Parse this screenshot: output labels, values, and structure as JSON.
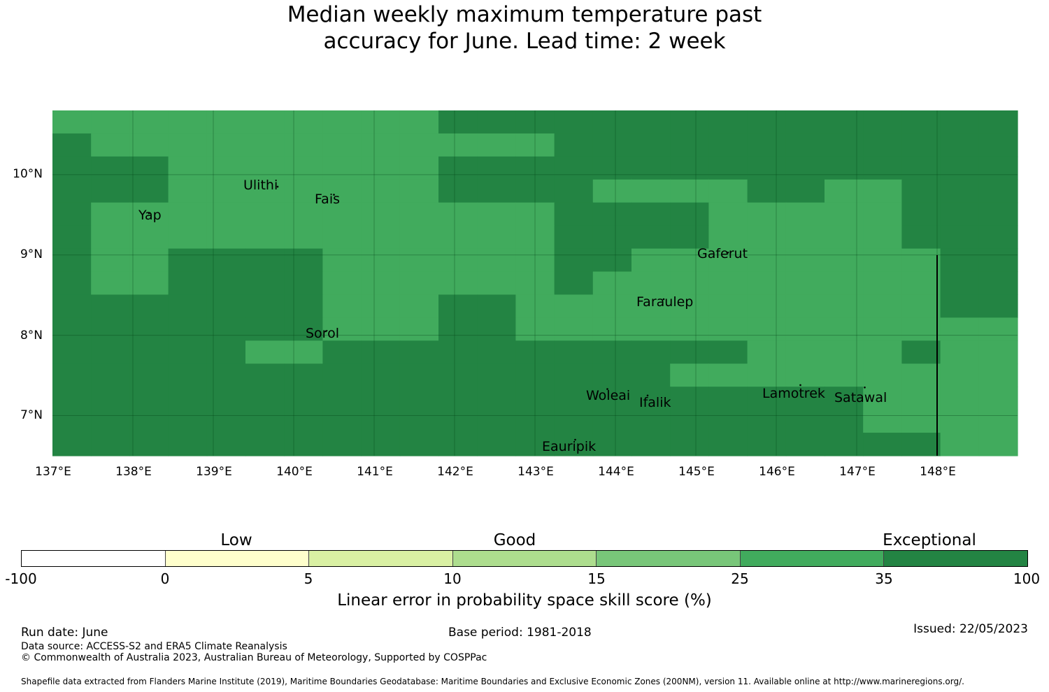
{
  "title": {
    "line1": "Median weekly maximum temperature past",
    "line2": "accuracy for June. Lead time: 2 week"
  },
  "map": {
    "lon_range": [
      137,
      149
    ],
    "lat_range": [
      6.5,
      10.8
    ],
    "lon_ticks": [
      "137°E",
      "138°E",
      "139°E",
      "140°E",
      "141°E",
      "142°E",
      "143°E",
      "144°E",
      "145°E",
      "146°E",
      "147°E",
      "148°E"
    ],
    "lat_ticks": [
      "10°N",
      "9°N",
      "8°N",
      "7°N"
    ],
    "colors": {
      "exceptional": "#238443",
      "good": "#41ab5d"
    },
    "grid_legend": "D = Exceptional (35 to 100), L = 25 to 35; columns from 137°E, rows from top",
    "grid": [
      "LLLLLLLLLLDDDDDDDDDDDDDDD",
      "DLLLLLLLLLLLLDDDDDDDDDDDD",
      "DDDLLLLLLLDDDDDDDDDDDDDDD",
      "DDDLLLLLLLDDDDLLLLDDLLDDD",
      "DLLLLLLLLLLLLDDDDLLLLLDDD",
      "DLLLLLLLLLLLLDDDDLLLLLDDD",
      "DLLDDDDLLLLLLDDLLLLLLLLDD",
      "DLLDDDDLLLLLLDLLLLLLLLLDD",
      "DDDDDDDLLLDDLLLLLLLLLLLDD",
      "DDDDDDDLLLDDLLLLLLLLLLLLL",
      "DDDDDLLDDDDDDDDDDDLLLLDLL",
      "DDDDDDDDDDDDDDDDLLLLLLLLL",
      "DDDDDDDDDDDDDDDDDDDDDLLLL",
      "DDDDDDDDDDDDDDDDDDDDDLLLL",
      "DDDDDDDDDDDDDDDDDDDDDDDLL"
    ],
    "places": [
      {
        "name": "Ulithi",
        "lon": 139.8,
        "lat": 9.85
      },
      {
        "name": "Fais",
        "lon": 140.5,
        "lat": 9.75
      },
      {
        "name": "Yap",
        "lon": 138.2,
        "lat": 9.52
      },
      {
        "name": "Gaferut",
        "lon": 145.4,
        "lat": 9.03
      },
      {
        "name": "Faraulep",
        "lon": 144.6,
        "lat": 8.45
      },
      {
        "name": "Sorol",
        "lon": 140.4,
        "lat": 8.05
      },
      {
        "name": "Woleai",
        "lon": 143.9,
        "lat": 7.33
      },
      {
        "name": "Ifalik",
        "lon": 144.4,
        "lat": 7.25
      },
      {
        "name": "Lamotrek",
        "lon": 146.3,
        "lat": 7.38
      },
      {
        "name": "Satawal",
        "lon": 147.1,
        "lat": 7.35
      },
      {
        "name": "Eauripik",
        "lon": 143.5,
        "lat": 6.7
      }
    ]
  },
  "colorbar": {
    "segments": [
      {
        "from": "-100",
        "to": "0",
        "color": "#ffffff"
      },
      {
        "from": "0",
        "to": "5",
        "color": "#ffffcc"
      },
      {
        "from": "5",
        "to": "10",
        "color": "#d9f0a3"
      },
      {
        "from": "10",
        "to": "15",
        "color": "#addd8e"
      },
      {
        "from": "15",
        "to": "25",
        "color": "#78c679"
      },
      {
        "from": "25",
        "to": "35",
        "color": "#41ab5d"
      },
      {
        "from": "35",
        "to": "100",
        "color": "#238443"
      }
    ],
    "ticks": [
      "-100",
      "0",
      "5",
      "10",
      "15",
      "25",
      "35",
      "100"
    ],
    "categories": [
      "Low",
      "Good",
      "Exceptional"
    ],
    "title": "Linear error in probability space skill score (%)"
  },
  "footer": {
    "run_date": "Run date: June",
    "base_period": "Base period: 1981-2018",
    "issued": "Issued: 22/05/2023",
    "data_source": "Data source: ACCESS-S2 and ERA5 Climate Reanalysis",
    "copyright": "© Commonwealth of Australia 2023, Australian Bureau of Meteorology, Supported by COSPPac",
    "shapefile": "Shapefile data extracted from Flanders Marine Institute (2019), Maritime Boundaries Geodatabase: Maritime Boundaries and Exclusive Economic Zones (200NM), version 11. Available online at http://www.marineregions.org/."
  }
}
